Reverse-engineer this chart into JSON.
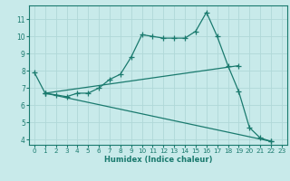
{
  "xlabel": "Humidex (Indice chaleur)",
  "bg_color": "#c8eaea",
  "grid_color": "#b0d8d8",
  "line_color": "#1a7a6e",
  "xlim": [
    -0.5,
    23.5
  ],
  "ylim": [
    3.7,
    11.8
  ],
  "yticks": [
    4,
    5,
    6,
    7,
    8,
    9,
    10,
    11
  ],
  "xticks": [
    0,
    1,
    2,
    3,
    4,
    5,
    6,
    7,
    8,
    9,
    10,
    11,
    12,
    13,
    14,
    15,
    16,
    17,
    18,
    19,
    20,
    21,
    22,
    23
  ],
  "line1_x": [
    0,
    1,
    2,
    3,
    4,
    5,
    6,
    7,
    8,
    9,
    10,
    11,
    12,
    13,
    14,
    15,
    16,
    17,
    18,
    19,
    20,
    21,
    22
  ],
  "line1_y": [
    7.9,
    6.7,
    6.6,
    6.5,
    6.7,
    6.7,
    7.0,
    7.5,
    7.8,
    8.8,
    10.1,
    10.0,
    9.9,
    9.9,
    9.9,
    10.3,
    11.4,
    10.0,
    8.3,
    6.8,
    4.7,
    4.1,
    3.9
  ],
  "line2_x": [
    1,
    19
  ],
  "line2_y": [
    6.7,
    8.3
  ],
  "line3_x": [
    1,
    22
  ],
  "line3_y": [
    6.7,
    3.9
  ]
}
